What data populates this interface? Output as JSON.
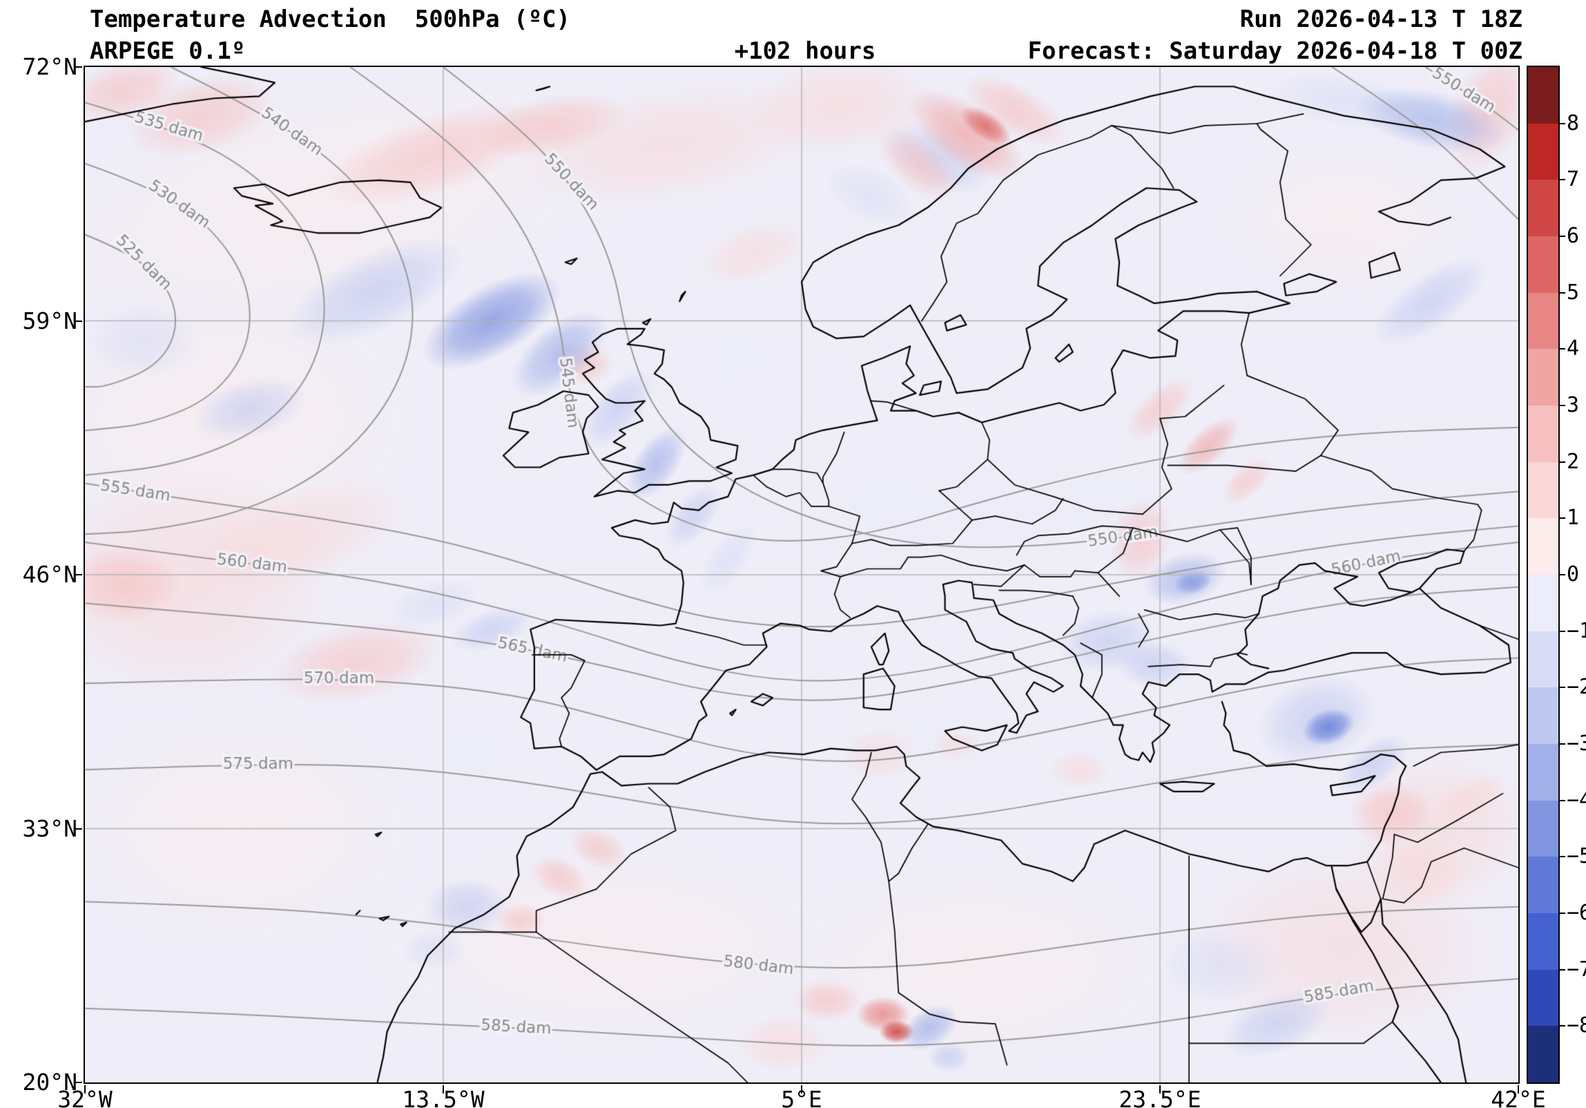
{
  "header": {
    "product": "Temperature Advection  500hPa (ºC)",
    "model": "ARPEGE 0.1º",
    "lead_time": "+102 hours",
    "run": "Run 2026-04-13 T 18Z",
    "valid": "Forecast: Saturday 2026-04-18 T 00Z"
  },
  "axes": {
    "lat_ticks": [
      "72°N",
      "59°N",
      "46°N",
      "33°N",
      "20°N"
    ],
    "lon_ticks": [
      "32°W",
      "13.5°W",
      "5°E",
      "23.5°E",
      "42°E"
    ]
  },
  "colorbar": {
    "tick_labels": [
      "8",
      "7",
      "6",
      "5",
      "4",
      "3",
      "2",
      "1",
      "0",
      "−1",
      "−2",
      "−3",
      "−4",
      "−5",
      "−6",
      "−7",
      "−8"
    ],
    "colors": [
      "#7a1c1c",
      "#bf2626",
      "#d04545",
      "#dd6666",
      "#e88585",
      "#f0a5a5",
      "#f6c0c0",
      "#fad7d7",
      "#fdecec",
      "#ececfa",
      "#d8dcf6",
      "#bfc8f0",
      "#a2b0e9",
      "#8295e1",
      "#617ad8",
      "#4560cf",
      "#3048b8",
      "#1e2f7a"
    ]
  },
  "chart_data": {
    "type": "heatmap",
    "title": "Temperature Advection 500hPa (ºC)",
    "model": "ARPEGE 0.1º",
    "lead_hours": 102,
    "run": "2026-04-13 18Z",
    "valid": "Saturday 2026-04-18 00Z",
    "units": "ºC",
    "lon_range": [
      -32,
      42
    ],
    "lat_range": [
      20,
      72
    ],
    "colorbar_range": [
      -8,
      8
    ],
    "grid_lons": [
      -13.5,
      5,
      23.5
    ],
    "grid_lats": [
      59,
      46,
      33
    ],
    "height_contours_dam": [
      525,
      530,
      535,
      540,
      545,
      550,
      555,
      560,
      565,
      570,
      575,
      580,
      585
    ],
    "contours": [
      {
        "label": "525 dam",
        "pts": [
          [
            0,
            0.165
          ],
          [
            0.035,
            0.185
          ],
          [
            0.06,
            0.22
          ],
          [
            0.065,
            0.26
          ],
          [
            0.05,
            0.295
          ],
          [
            0.015,
            0.315
          ],
          [
            0,
            0.315
          ]
        ],
        "label_t": [
          0.25
        ]
      },
      {
        "label": "530 dam",
        "pts": [
          [
            0,
            0.095
          ],
          [
            0.05,
            0.12
          ],
          [
            0.09,
            0.16
          ],
          [
            0.115,
            0.215
          ],
          [
            0.115,
            0.275
          ],
          [
            0.09,
            0.325
          ],
          [
            0.045,
            0.352
          ],
          [
            0,
            0.358
          ]
        ],
        "label_t": [
          0.22
        ]
      },
      {
        "label": "535 dam",
        "pts": [
          [
            0,
            0.035
          ],
          [
            0.06,
            0.06
          ],
          [
            0.115,
            0.1
          ],
          [
            0.155,
            0.16
          ],
          [
            0.17,
            0.23
          ],
          [
            0.16,
            0.3
          ],
          [
            0.125,
            0.357
          ],
          [
            0.065,
            0.392
          ],
          [
            0,
            0.402
          ]
        ],
        "label_t": [
          0.13
        ]
      },
      {
        "label": "540 dam",
        "pts": [
          [
            0.06,
            0
          ],
          [
            0.125,
            0.045
          ],
          [
            0.185,
            0.105
          ],
          [
            0.22,
            0.175
          ],
          [
            0.232,
            0.25
          ],
          [
            0.216,
            0.325
          ],
          [
            0.175,
            0.392
          ],
          [
            0.115,
            0.437
          ],
          [
            0.045,
            0.457
          ],
          [
            0,
            0.46
          ]
        ],
        "label_t": [
          0.17
        ]
      },
      {
        "label": "545 dam",
        "pts": [
          [
            0.185,
            0
          ],
          [
            0.245,
            0.06
          ],
          [
            0.3,
            0.14
          ],
          [
            0.33,
            0.235
          ],
          [
            0.338,
            0.33
          ],
          [
            0.36,
            0.4
          ],
          [
            0.415,
            0.45
          ],
          [
            0.48,
            0.47
          ],
          [
            0.55,
            0.46
          ],
          [
            0.62,
            0.43
          ],
          [
            0.7,
            0.4
          ],
          [
            0.79,
            0.375
          ],
          [
            0.89,
            0.36
          ],
          [
            1,
            0.355
          ]
        ],
        "label_t": [
          0.285
        ]
      },
      {
        "label": "545 dam",
        "pts": [
          [
            0.87,
            0
          ],
          [
            0.93,
            0.055
          ],
          [
            0.975,
            0.115
          ],
          [
            1,
            0.15
          ]
        ],
        "label_t": []
      },
      {
        "label": "550 dam",
        "pts": [
          [
            0.25,
            0
          ],
          [
            0.3,
            0.055
          ],
          [
            0.34,
            0.115
          ],
          [
            0.368,
            0.19
          ],
          [
            0.378,
            0.27
          ],
          [
            0.4,
            0.35
          ],
          [
            0.455,
            0.415
          ],
          [
            0.525,
            0.455
          ],
          [
            0.6,
            0.475
          ],
          [
            0.69,
            0.47
          ],
          [
            0.78,
            0.452
          ],
          [
            0.88,
            0.432
          ],
          [
            1,
            0.418
          ]
        ],
        "label_t": [
          0.13,
          0.7
        ]
      },
      {
        "label": "550 dam",
        "pts": [
          [
            0.935,
            0
          ],
          [
            0.975,
            0.035
          ],
          [
            1,
            0.062
          ]
        ],
        "label_t": [
          0.4
        ]
      },
      {
        "label": "555 dam",
        "pts": [
          [
            0,
            0.41
          ],
          [
            0.08,
            0.428
          ],
          [
            0.16,
            0.443
          ],
          [
            0.24,
            0.463
          ],
          [
            0.31,
            0.49
          ],
          [
            0.38,
            0.523
          ],
          [
            0.45,
            0.548
          ],
          [
            0.53,
            0.553
          ],
          [
            0.61,
            0.538
          ],
          [
            0.7,
            0.513
          ],
          [
            0.8,
            0.487
          ],
          [
            0.9,
            0.465
          ],
          [
            1,
            0.452
          ]
        ],
        "label_t": [
          0.035
        ]
      },
      {
        "label": "560 dam",
        "pts": [
          [
            0,
            0.468
          ],
          [
            0.09,
            0.485
          ],
          [
            0.18,
            0.5
          ],
          [
            0.26,
            0.522
          ],
          [
            0.34,
            0.552
          ],
          [
            0.41,
            0.585
          ],
          [
            0.49,
            0.607
          ],
          [
            0.57,
            0.6
          ],
          [
            0.65,
            0.575
          ],
          [
            0.74,
            0.54
          ],
          [
            0.83,
            0.508
          ],
          [
            0.925,
            0.48
          ],
          [
            1,
            0.468
          ]
        ],
        "label_t": [
          0.115,
          0.895
        ]
      },
      {
        "label": "565 dam",
        "pts": [
          [
            0,
            0.528
          ],
          [
            0.1,
            0.54
          ],
          [
            0.2,
            0.552
          ],
          [
            0.29,
            0.568
          ],
          [
            0.37,
            0.592
          ],
          [
            0.44,
            0.617
          ],
          [
            0.52,
            0.627
          ],
          [
            0.61,
            0.607
          ],
          [
            0.7,
            0.577
          ],
          [
            0.8,
            0.547
          ],
          [
            0.9,
            0.522
          ],
          [
            1,
            0.512
          ]
        ],
        "label_t": [
          0.31
        ]
      },
      {
        "label": "570 dam",
        "pts": [
          [
            0,
            0.607
          ],
          [
            0.1,
            0.603
          ],
          [
            0.2,
            0.603
          ],
          [
            0.3,
            0.617
          ],
          [
            0.38,
            0.647
          ],
          [
            0.46,
            0.677
          ],
          [
            0.54,
            0.687
          ],
          [
            0.63,
            0.667
          ],
          [
            0.73,
            0.637
          ],
          [
            0.83,
            0.607
          ],
          [
            0.92,
            0.587
          ],
          [
            1,
            0.582
          ]
        ],
        "label_t": [
          0.175
        ]
      },
      {
        "label": "575 dam",
        "pts": [
          [
            0,
            0.692
          ],
          [
            0.1,
            0.687
          ],
          [
            0.2,
            0.687
          ],
          [
            0.3,
            0.702
          ],
          [
            0.4,
            0.727
          ],
          [
            0.5,
            0.747
          ],
          [
            0.6,
            0.742
          ],
          [
            0.7,
            0.717
          ],
          [
            0.8,
            0.692
          ],
          [
            0.9,
            0.672
          ],
          [
            1,
            0.667
          ]
        ],
        "label_t": [
          0.12
        ]
      },
      {
        "label": "580 dam",
        "pts": [
          [
            0,
            0.822
          ],
          [
            0.12,
            0.827
          ],
          [
            0.24,
            0.842
          ],
          [
            0.36,
            0.867
          ],
          [
            0.48,
            0.887
          ],
          [
            0.58,
            0.887
          ],
          [
            0.68,
            0.867
          ],
          [
            0.78,
            0.847
          ],
          [
            0.88,
            0.832
          ],
          [
            1,
            0.827
          ]
        ],
        "label_t": [
          0.47
        ]
      },
      {
        "label": "585 dam",
        "pts": [
          [
            0,
            0.927
          ],
          [
            0.1,
            0.932
          ],
          [
            0.2,
            0.94
          ],
          [
            0.3,
            0.946
          ],
          [
            0.42,
            0.956
          ],
          [
            0.54,
            0.966
          ],
          [
            0.66,
            0.958
          ],
          [
            0.78,
            0.935
          ],
          [
            0.88,
            0.91
          ],
          [
            1,
            0.898
          ]
        ],
        "label_t": [
          0.3,
          0.875
        ]
      }
    ],
    "advection_features": [
      [
        -20,
        65,
        15,
        6,
        -12,
        1
      ],
      [
        -25,
        54,
        10,
        7,
        0,
        1
      ],
      [
        -27,
        45.5,
        8,
        6,
        0,
        1.5
      ],
      [
        -24,
        33,
        9,
        6,
        0,
        1
      ],
      [
        -5,
        27,
        12,
        5,
        0,
        1
      ],
      [
        14,
        26,
        10,
        5,
        0,
        0.8
      ],
      [
        33,
        27,
        8,
        5,
        0,
        1.2
      ],
      [
        38,
        33,
        5,
        4,
        0,
        1.5
      ],
      [
        10,
        49,
        9,
        6,
        0,
        -1
      ],
      [
        20,
        50,
        8,
        5,
        0,
        -0.8
      ],
      [
        13,
        38,
        9,
        4,
        0,
        -0.7
      ],
      [
        25,
        35.5,
        7,
        3,
        0,
        -0.7
      ],
      [
        2,
        57,
        6,
        4,
        0,
        -0.8
      ],
      [
        30,
        60,
        8,
        4,
        0,
        -0.8
      ],
      [
        -12,
        37,
        6,
        4,
        0,
        -0.8
      ],
      [
        33,
        64,
        6,
        4,
        0,
        1
      ],
      [
        -2,
        68,
        8,
        3,
        -10,
        1.6
      ],
      [
        7,
        70,
        5,
        2.5,
        -5,
        2
      ],
      [
        -14,
        67.5,
        6,
        2,
        -18,
        2.2
      ],
      [
        -8,
        69,
        4,
        1.5,
        -12,
        2.6
      ],
      [
        -26,
        69.5,
        4,
        2,
        -15,
        2.6
      ],
      [
        -30,
        70.8,
        3,
        1.5,
        -15,
        3
      ],
      [
        2.5,
        62.5,
        3,
        1.5,
        -20,
        1.4
      ],
      [
        -21,
        48,
        6,
        2.5,
        -18,
        1.6
      ],
      [
        13.5,
        68.5,
        3.5,
        1.6,
        35,
        4
      ],
      [
        16,
        69.8,
        3,
        1.3,
        30,
        3
      ],
      [
        14.5,
        69,
        1.5,
        0.7,
        32,
        5.5
      ],
      [
        11,
        67,
        2.5,
        1.3,
        40,
        2.5
      ],
      [
        -17,
        60.5,
        5,
        2,
        -25,
        -3
      ],
      [
        -11,
        59,
        4,
        1.8,
        -30,
        -5
      ],
      [
        -7.5,
        57.3,
        3,
        1.5,
        -40,
        -4
      ],
      [
        -4.5,
        54.5,
        2.5,
        1.2,
        -50,
        -3
      ],
      [
        -2.5,
        51.7,
        2.2,
        1.1,
        -55,
        -3.5
      ],
      [
        -0.6,
        49,
        2,
        1,
        -52,
        -2.5
      ],
      [
        1.2,
        46.8,
        2.2,
        1,
        -55,
        -2
      ],
      [
        -6.3,
        56.8,
        1.6,
        1.1,
        0,
        3
      ],
      [
        -30,
        45.5,
        3,
        2,
        0,
        3
      ],
      [
        -18,
        41.5,
        4.5,
        2,
        -12,
        2.2
      ],
      [
        23.5,
        54.5,
        2.2,
        1,
        -42,
        2.5
      ],
      [
        26,
        52.6,
        2,
        0.9,
        -42,
        3.2
      ],
      [
        28,
        50.8,
        1.6,
        0.8,
        -42,
        2.2
      ],
      [
        22.5,
        47.8,
        1.6,
        2.2,
        15,
        2.6
      ],
      [
        24.8,
        45.8,
        2.2,
        1.3,
        -15,
        -3.2
      ],
      [
        25.2,
        45.6,
        1,
        0.6,
        -15,
        -4.5
      ],
      [
        20.8,
        42.6,
        2.6,
        1.6,
        -8,
        -2.5
      ],
      [
        23.2,
        41.4,
        2,
        1.2,
        0,
        -3
      ],
      [
        31.6,
        38.6,
        3.2,
        2.2,
        -18,
        -3
      ],
      [
        32.2,
        38.2,
        1.4,
        0.9,
        -18,
        -5.5
      ],
      [
        34.5,
        36.3,
        2.2,
        1.1,
        -38,
        -3
      ],
      [
        37.5,
        69.3,
        4,
        1.5,
        12,
        -3.2
      ],
      [
        33,
        70.3,
        4,
        1.4,
        8,
        -2
      ],
      [
        37.5,
        60,
        3.5,
        1.4,
        -35,
        -2.5
      ],
      [
        40.5,
        69.8,
        2,
        3.5,
        25,
        2.5
      ],
      [
        35.5,
        33.8,
        2.2,
        1.6,
        0,
        2.8
      ],
      [
        37,
        30.8,
        2.5,
        1.8,
        0,
        2
      ],
      [
        39.5,
        34.5,
        2,
        1,
        -30,
        2
      ],
      [
        26.5,
        26,
        3,
        2,
        0,
        -1.8
      ],
      [
        29.5,
        23,
        3,
        1.5,
        -20,
        -2.5
      ],
      [
        9.2,
        23.5,
        1.4,
        0.9,
        0,
        5
      ],
      [
        9.9,
        22.6,
        0.9,
        0.6,
        0,
        6.5
      ],
      [
        6.3,
        24.2,
        1.8,
        1.1,
        0,
        3
      ],
      [
        11.6,
        22.8,
        1.6,
        1,
        -30,
        -4
      ],
      [
        12.6,
        21.3,
        1.1,
        0.8,
        0,
        -3
      ],
      [
        4,
        22,
        2.5,
        1.5,
        0,
        2
      ],
      [
        -7.5,
        30.5,
        1.6,
        1,
        25,
        3
      ],
      [
        -5.5,
        32,
        1.6,
        1,
        25,
        2.5
      ],
      [
        -9.5,
        28.3,
        1.3,
        0.9,
        0,
        2.2
      ],
      [
        -12.3,
        29,
        2.2,
        1.5,
        0,
        -2.5
      ],
      [
        -14,
        26.8,
        1.7,
        1.1,
        0,
        -2
      ],
      [
        -11,
        43.2,
        2.2,
        1,
        -18,
        -2.5
      ],
      [
        -14,
        44.5,
        2.5,
        1.2,
        -15,
        -1.8
      ],
      [
        9,
        36.8,
        2,
        1.3,
        0,
        1.5
      ],
      [
        13,
        37.3,
        1.2,
        0.8,
        0,
        1.8
      ],
      [
        19.3,
        36,
        1.6,
        1,
        0,
        1.5
      ],
      [
        12,
        67.3,
        3,
        1.5,
        25,
        -2.2
      ],
      [
        8.5,
        65.5,
        2.5,
        1.4,
        25,
        -1.6
      ],
      [
        -23.5,
        54.5,
        3,
        1.5,
        -15,
        -2.2
      ],
      [
        -29,
        58,
        3,
        2,
        0,
        -1.5
      ]
    ]
  }
}
